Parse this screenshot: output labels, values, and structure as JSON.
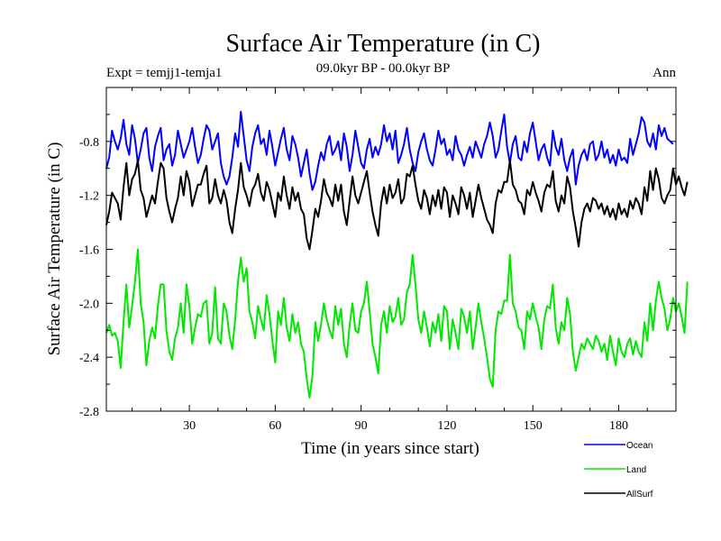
{
  "chart_data": {
    "type": "line",
    "title": "Surface Air Temperature (in C)",
    "subtitle_left": "Expt = temjj1-temja1",
    "subtitle_center": "09.0kyr BP - 00.0kyr BP",
    "subtitle_right": "Ann",
    "xlabel": "Time (in years since start)",
    "ylabel": "Surface Air Temperature (in C)",
    "xlim": [
      1,
      200
    ],
    "ylim": [
      -2.8,
      -0.4
    ],
    "xticks": [
      30,
      60,
      90,
      120,
      150,
      180
    ],
    "xtick_labels": [
      "30",
      "60",
      "90",
      "120",
      "150",
      "180"
    ],
    "yticks": [
      -2.8,
      -2.4,
      -2.0,
      -1.6,
      -1.2,
      -0.8
    ],
    "ytick_labels": [
      "-2.8",
      "-2.4",
      "-2.0",
      "-1.6",
      "-1.2",
      "-0.8"
    ],
    "grid": false,
    "legend_position": "bottom-right, below plot",
    "series": [
      {
        "name": "Ocean",
        "color": "#0000ff",
        "x_start": 1,
        "x_step": 1,
        "values": [
          -1.0,
          -0.92,
          -0.72,
          -0.8,
          -0.86,
          -0.78,
          -0.64,
          -0.82,
          -0.9,
          -0.68,
          -0.78,
          -0.96,
          -0.86,
          -0.74,
          -0.7,
          -0.92,
          -1.02,
          -0.84,
          -0.76,
          -0.7,
          -0.94,
          -0.86,
          -0.82,
          -0.98,
          -0.9,
          -0.72,
          -0.82,
          -0.92,
          -0.86,
          -0.8,
          -0.7,
          -0.84,
          -0.96,
          -0.9,
          -0.78,
          -0.68,
          -0.72,
          -0.86,
          -0.8,
          -0.74,
          -0.96,
          -1.06,
          -1.12,
          -1.06,
          -0.92,
          -0.74,
          -0.84,
          -0.58,
          -0.76,
          -0.94,
          -1.02,
          -0.84,
          -0.74,
          -0.68,
          -0.82,
          -0.78,
          -0.9,
          -0.72,
          -0.84,
          -0.98,
          -0.88,
          -0.78,
          -0.7,
          -0.86,
          -0.94,
          -0.76,
          -0.82,
          -0.92,
          -1.06,
          -0.96,
          -0.86,
          -1.04,
          -1.16,
          -1.1,
          -0.98,
          -0.88,
          -0.94,
          -0.82,
          -0.76,
          -0.9,
          -0.86,
          -0.8,
          -0.94,
          -0.74,
          -0.84,
          -1.02,
          -0.9,
          -0.72,
          -0.84,
          -0.96,
          -1.0,
          -0.86,
          -0.78,
          -0.92,
          -0.84,
          -0.9,
          -0.82,
          -0.68,
          -0.8,
          -0.74,
          -0.86,
          -0.72,
          -0.96,
          -0.9,
          -0.82,
          -0.7,
          -0.86,
          -0.96,
          -1.02,
          -0.88,
          -0.8,
          -0.74,
          -0.86,
          -0.94,
          -0.98,
          -0.86,
          -0.72,
          -0.82,
          -0.78,
          -0.9,
          -0.86,
          -0.94,
          -0.76,
          -0.86,
          -0.9,
          -0.98,
          -0.9,
          -0.84,
          -0.92,
          -0.8,
          -0.86,
          -0.92,
          -0.82,
          -0.76,
          -0.66,
          -0.76,
          -0.92,
          -0.86,
          -0.72,
          -0.6,
          -0.84,
          -0.96,
          -0.82,
          -0.76,
          -0.92,
          -0.94,
          -0.8,
          -0.88,
          -0.74,
          -0.66,
          -0.8,
          -0.94,
          -0.86,
          -0.82,
          -0.92,
          -0.98,
          -0.72,
          -0.84,
          -0.9,
          -0.78,
          -0.94,
          -1.02,
          -0.92,
          -0.86,
          -1.12,
          -0.98,
          -0.9,
          -0.86,
          -0.94,
          -0.82,
          -0.8,
          -0.94,
          -0.9,
          -0.8,
          -0.92,
          -0.86,
          -0.96,
          -0.9,
          -0.98,
          -0.86,
          -0.94,
          -0.92,
          -0.96,
          -0.78,
          -0.9,
          -0.82,
          -0.74,
          -0.62,
          -0.66,
          -0.8,
          -0.84,
          -0.74,
          -0.86,
          -0.68,
          -0.76,
          -0.7,
          -0.78,
          -0.8,
          -0.82
        ]
      },
      {
        "name": "Land",
        "color": "#00e800",
        "x_start": 1,
        "x_step": 1,
        "values": [
          -2.22,
          -2.16,
          -2.24,
          -2.22,
          -2.28,
          -2.48,
          -2.14,
          -1.86,
          -2.18,
          -2.02,
          -1.84,
          -1.6,
          -2.0,
          -2.14,
          -2.46,
          -2.28,
          -2.18,
          -2.26,
          -2.02,
          -1.86,
          -1.86,
          -2.2,
          -2.36,
          -2.42,
          -2.26,
          -2.18,
          -2.0,
          -2.22,
          -1.86,
          -2.02,
          -2.3,
          -2.18,
          -2.08,
          -2.1,
          -2.0,
          -1.98,
          -2.3,
          -2.22,
          -1.88,
          -2.26,
          -2.3,
          -2.0,
          -2.06,
          -2.24,
          -2.34,
          -2.12,
          -1.84,
          -1.66,
          -1.84,
          -1.74,
          -2.06,
          -2.14,
          -2.26,
          -2.02,
          -2.12,
          -2.2,
          -1.94,
          -2.08,
          -2.28,
          -2.44,
          -2.06,
          -2.16,
          -1.96,
          -2.18,
          -2.28,
          -2.08,
          -2.22,
          -2.14,
          -2.3,
          -2.36,
          -2.56,
          -2.7,
          -2.54,
          -2.14,
          -2.28,
          -2.16,
          -2.0,
          -2.12,
          -2.2,
          -2.26,
          -2.02,
          -2.16,
          -2.04,
          -2.3,
          -2.4,
          -2.16,
          -2.0,
          -2.2,
          -2.22,
          -2.06,
          -2.0,
          -1.84,
          -2.06,
          -2.3,
          -2.4,
          -2.52,
          -2.16,
          -2.06,
          -2.22,
          -2.02,
          -2.14,
          -2.1,
          -1.96,
          -2.16,
          -2.12,
          -1.92,
          -1.86,
          -1.64,
          -1.86,
          -2.12,
          -2.22,
          -2.06,
          -2.18,
          -2.32,
          -2.14,
          -2.22,
          -2.08,
          -2.28,
          -2.02,
          -2.06,
          -2.34,
          -2.12,
          -2.22,
          -2.34,
          -2.04,
          -2.1,
          -2.22,
          -2.06,
          -2.34,
          -2.18,
          -2.0,
          -2.14,
          -2.26,
          -2.4,
          -2.56,
          -2.62,
          -2.2,
          -2.06,
          -2.08,
          -1.98,
          -1.98,
          -1.64,
          -2.0,
          -2.06,
          -2.18,
          -2.2,
          -2.34,
          -2.06,
          -2.12,
          -2.0,
          -2.1,
          -2.18,
          -2.34,
          -2.12,
          -2.02,
          -2.04,
          -1.86,
          -2.18,
          -2.3,
          -2.14,
          -2.2,
          -1.96,
          -2.08,
          -2.36,
          -2.5,
          -2.4,
          -2.3,
          -2.34,
          -2.26,
          -2.3,
          -2.34,
          -2.24,
          -2.28,
          -2.36,
          -2.3,
          -2.42,
          -2.24,
          -2.36,
          -2.46,
          -2.26,
          -2.36,
          -2.4,
          -2.3,
          -2.26,
          -2.38,
          -2.28,
          -2.36,
          -2.4,
          -2.14,
          -2.28,
          -2.0,
          -2.2,
          -1.98,
          -1.84,
          -1.96,
          -2.04,
          -2.2,
          -2.12,
          -1.96,
          -2.06,
          -2.0,
          -2.1,
          -2.22,
          -1.84
        ]
      },
      {
        "name": "AllSurf",
        "color": "#000000",
        "x_start": 1,
        "x_step": 1,
        "values": [
          -1.42,
          -1.32,
          -1.18,
          -1.22,
          -1.26,
          -1.38,
          -1.14,
          -0.96,
          -1.2,
          -1.08,
          -1.04,
          -0.94,
          -1.16,
          -1.22,
          -1.36,
          -1.28,
          -1.2,
          -1.26,
          -1.1,
          -0.96,
          -1.0,
          -1.22,
          -1.32,
          -1.4,
          -1.3,
          -1.22,
          -1.06,
          -1.2,
          -1.02,
          -1.1,
          -1.28,
          -1.2,
          -1.12,
          -1.12,
          -1.04,
          -0.98,
          -1.26,
          -1.22,
          -1.08,
          -1.2,
          -1.26,
          -1.16,
          -1.24,
          -1.4,
          -1.48,
          -1.3,
          -1.16,
          -0.96,
          -1.14,
          -1.2,
          -1.28,
          -1.16,
          -1.12,
          -1.04,
          -1.18,
          -1.24,
          -1.1,
          -1.16,
          -1.26,
          -1.36,
          -1.18,
          -1.24,
          -1.06,
          -1.2,
          -1.3,
          -1.14,
          -1.24,
          -1.18,
          -1.3,
          -1.34,
          -1.52,
          -1.6,
          -1.46,
          -1.3,
          -1.36,
          -1.24,
          -1.08,
          -1.18,
          -1.22,
          -1.28,
          -1.12,
          -1.24,
          -1.12,
          -1.32,
          -1.42,
          -1.24,
          -1.06,
          -1.2,
          -1.26,
          -1.18,
          -1.1,
          -1.02,
          -1.18,
          -1.32,
          -1.42,
          -1.5,
          -1.26,
          -1.14,
          -1.26,
          -1.12,
          -1.22,
          -1.18,
          -1.08,
          -1.26,
          -1.22,
          -1.04,
          -1.06,
          -0.98,
          -1.12,
          -1.24,
          -1.3,
          -1.16,
          -1.22,
          -1.34,
          -1.2,
          -1.28,
          -1.16,
          -1.3,
          -1.14,
          -1.18,
          -1.36,
          -1.2,
          -1.26,
          -1.34,
          -1.14,
          -1.2,
          -1.3,
          -1.18,
          -1.36,
          -1.24,
          -1.12,
          -1.22,
          -1.3,
          -1.38,
          -1.42,
          -1.48,
          -1.26,
          -1.16,
          -1.18,
          -1.1,
          -1.1,
          -0.94,
          -1.12,
          -1.16,
          -1.24,
          -1.26,
          -1.34,
          -1.16,
          -1.2,
          -1.1,
          -1.18,
          -1.24,
          -1.32,
          -1.18,
          -1.12,
          -1.14,
          -1.02,
          -1.24,
          -1.32,
          -1.2,
          -1.26,
          -1.06,
          -1.14,
          -1.32,
          -1.44,
          -1.58,
          -1.4,
          -1.3,
          -1.26,
          -1.32,
          -1.22,
          -1.24,
          -1.3,
          -1.26,
          -1.34,
          -1.28,
          -1.36,
          -1.3,
          -1.38,
          -1.26,
          -1.34,
          -1.3,
          -1.36,
          -1.24,
          -1.3,
          -1.22,
          -1.26,
          -1.34,
          -1.14,
          -1.24,
          -1.02,
          -1.16,
          -1.0,
          -1.08,
          -1.22,
          -1.26,
          -1.2,
          -1.16,
          -1.0,
          -1.12,
          -1.06,
          -1.14,
          -1.2,
          -1.1
        ]
      }
    ]
  }
}
